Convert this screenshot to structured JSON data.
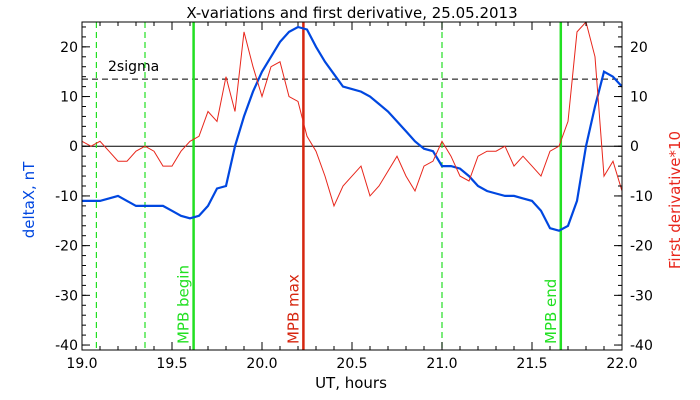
{
  "chart_data": {
    "type": "line",
    "title": "X-variations and first derivative, 25.05.2013",
    "xlabel": "UT, hours",
    "ylabel_left": "deltaX, nT",
    "ylabel_right": "First derivative*10",
    "xlim": [
      19.0,
      22.0
    ],
    "ylim_left": [
      -41,
      25
    ],
    "ylim_right": [
      -41,
      25
    ],
    "x_ticks": [
      "19.0",
      "19.5",
      "20.0",
      "20.5",
      "21.0",
      "21.5",
      "22.0"
    ],
    "y_ticks_left": [
      "20",
      "10",
      "0",
      "-10",
      "-20",
      "-30",
      "-40"
    ],
    "y_ticks_right": [
      "20",
      "10",
      "0",
      "-10",
      "-20",
      "-30",
      "-40"
    ],
    "colors": {
      "deltaX": "#0047e0",
      "derivative": "#e8261b",
      "markers": "#22e022",
      "max": "#e8261b"
    },
    "threshold": {
      "label": "2sigma",
      "value": 13.5
    },
    "zero_line": 0,
    "vertical_markers": [
      {
        "x": 19.62,
        "label": "MPB begin",
        "color": "#22e022",
        "style": "solid"
      },
      {
        "x": 20.23,
        "label": "MPB max",
        "color": "#d6260f",
        "style": "solid"
      },
      {
        "x": 21.66,
        "label": "MPB end",
        "color": "#22e022",
        "style": "solid"
      },
      {
        "x": 19.08,
        "label": "",
        "color": "#22e022",
        "style": "dashed"
      },
      {
        "x": 19.35,
        "label": "",
        "color": "#22e022",
        "style": "dashed"
      },
      {
        "x": 21.0,
        "label": "",
        "color": "#22e022",
        "style": "dashed"
      }
    ],
    "series": [
      {
        "key": "deltaX",
        "axis": "left",
        "x": [
          19.0,
          19.05,
          19.1,
          19.15,
          19.2,
          19.25,
          19.3,
          19.35,
          19.4,
          19.45,
          19.5,
          19.55,
          19.6,
          19.65,
          19.7,
          19.75,
          19.8,
          19.85,
          19.9,
          19.95,
          20.0,
          20.05,
          20.1,
          20.15,
          20.2,
          20.25,
          20.3,
          20.35,
          20.4,
          20.45,
          20.5,
          20.55,
          20.6,
          20.65,
          20.7,
          20.75,
          20.8,
          20.85,
          20.9,
          20.95,
          21.0,
          21.05,
          21.1,
          21.15,
          21.2,
          21.25,
          21.3,
          21.35,
          21.4,
          21.45,
          21.5,
          21.55,
          21.6,
          21.65,
          21.7,
          21.75,
          21.8,
          21.85,
          21.9,
          21.95,
          22.0
        ],
        "values": [
          -11,
          -11,
          -11,
          -10.5,
          -10,
          -11,
          -12,
          -12,
          -12,
          -12,
          -13,
          -14,
          -14.5,
          -14,
          -12,
          -8.5,
          -8,
          0,
          6,
          11,
          15,
          18,
          21,
          23,
          24,
          23.5,
          20,
          17,
          14.5,
          12,
          11.5,
          11,
          10,
          8.5,
          7,
          5,
          3,
          1,
          -0.5,
          -1,
          -4,
          -4,
          -4.5,
          -6,
          -8,
          -9,
          -9.5,
          -10,
          -10,
          -10.5,
          -11,
          -13,
          -16.5,
          -17,
          -16,
          -11,
          0,
          8,
          15,
          14,
          12
        ]
      },
      {
        "key": "derivative",
        "axis": "right",
        "x": [
          19.0,
          19.05,
          19.1,
          19.15,
          19.2,
          19.25,
          19.3,
          19.35,
          19.4,
          19.45,
          19.5,
          19.55,
          19.6,
          19.65,
          19.7,
          19.75,
          19.8,
          19.85,
          19.9,
          19.95,
          20.0,
          20.05,
          20.1,
          20.15,
          20.2,
          20.25,
          20.3,
          20.35,
          20.4,
          20.45,
          20.5,
          20.55,
          20.6,
          20.65,
          20.7,
          20.75,
          20.8,
          20.85,
          20.9,
          20.95,
          21.0,
          21.05,
          21.1,
          21.15,
          21.2,
          21.25,
          21.3,
          21.35,
          21.4,
          21.45,
          21.5,
          21.55,
          21.6,
          21.65,
          21.7,
          21.75,
          21.8,
          21.85,
          21.9,
          21.95,
          22.0
        ],
        "values": [
          1,
          0,
          1,
          -1,
          -3,
          -3,
          -1,
          0,
          -1,
          -4,
          -4,
          -1,
          1,
          2,
          7,
          5,
          14,
          7,
          23,
          16,
          10,
          16,
          17,
          10,
          9,
          2,
          -1,
          -6,
          -12,
          -8,
          -6,
          -4,
          -10,
          -8,
          -5,
          -2,
          -6,
          -9,
          -4,
          -3,
          1,
          -2,
          -6,
          -7,
          -2,
          -1,
          -1,
          0,
          -4,
          -2,
          -4,
          -6,
          -1,
          0,
          5,
          23,
          25,
          18,
          -6,
          -3,
          -9
        ]
      }
    ]
  }
}
